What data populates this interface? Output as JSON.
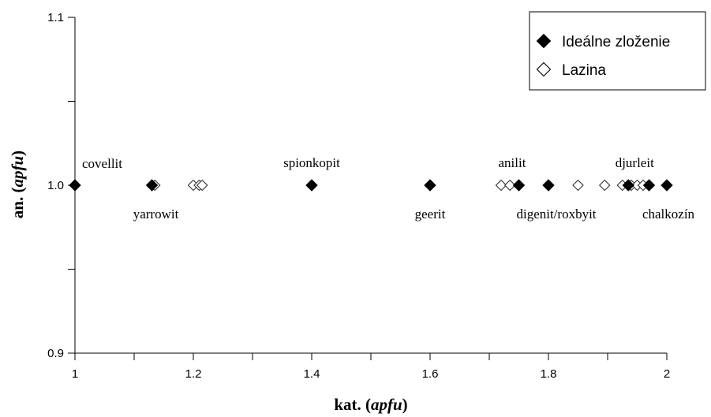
{
  "chart_data": {
    "type": "scatter",
    "xlabel": {
      "prefix": "kat. (",
      "unit": "apfu",
      "suffix": ")"
    },
    "ylabel": {
      "prefix": "an. (",
      "unit": "apfu",
      "suffix": ")"
    },
    "xlim": [
      1,
      2
    ],
    "ylim": [
      0.9,
      1.1
    ],
    "x_ticks": [
      {
        "value": 1,
        "label": "1"
      },
      {
        "value": 1.2,
        "label": "1.2"
      },
      {
        "value": 1.4,
        "label": "1.4"
      },
      {
        "value": 1.6,
        "label": "1.6"
      },
      {
        "value": 1.8,
        "label": "1.8"
      },
      {
        "value": 2,
        "label": "2"
      }
    ],
    "x_minor_step": 0.1,
    "y_ticks": [
      {
        "value": 0.9,
        "label": "0.9"
      },
      {
        "value": 1.0,
        "label": "1.0"
      },
      {
        "value": 1.1,
        "label": "1.1"
      }
    ],
    "y_minor_step": 0.05,
    "grid": false,
    "legend_position": "top-right",
    "series": [
      {
        "name": "Ideálne zloženie",
        "marker": "filled-diamond",
        "color": "#000000",
        "points": [
          {
            "x": 1.0,
            "y": 1.0
          },
          {
            "x": 1.13,
            "y": 1.0
          },
          {
            "x": 1.4,
            "y": 1.0
          },
          {
            "x": 1.6,
            "y": 1.0
          },
          {
            "x": 1.75,
            "y": 1.0
          },
          {
            "x": 1.8,
            "y": 1.0
          },
          {
            "x": 1.935,
            "y": 1.0
          },
          {
            "x": 1.97,
            "y": 1.0
          },
          {
            "x": 2.0,
            "y": 1.0
          }
        ]
      },
      {
        "name": "Lazina",
        "marker": "open-diamond",
        "color": "#000000",
        "points": [
          {
            "x": 1.135,
            "y": 1.0
          },
          {
            "x": 1.2,
            "y": 1.0
          },
          {
            "x": 1.21,
            "y": 1.0
          },
          {
            "x": 1.215,
            "y": 1.0
          },
          {
            "x": 1.72,
            "y": 1.0
          },
          {
            "x": 1.735,
            "y": 1.0
          },
          {
            "x": 1.85,
            "y": 1.0
          },
          {
            "x": 1.895,
            "y": 1.0
          },
          {
            "x": 1.925,
            "y": 1.0
          },
          {
            "x": 1.94,
            "y": 1.0
          },
          {
            "x": 1.95,
            "y": 1.0
          },
          {
            "x": 1.96,
            "y": 1.0
          }
        ]
      }
    ],
    "annotations": [
      {
        "text": "covellit",
        "x": 1.0,
        "y": 1.0,
        "position": "above-right"
      },
      {
        "text": "yarrowit",
        "x": 1.13,
        "y": 1.0,
        "position": "below"
      },
      {
        "text": "spionkopit",
        "x": 1.4,
        "y": 1.0,
        "position": "above"
      },
      {
        "text": "geerit",
        "x": 1.6,
        "y": 1.0,
        "position": "below"
      },
      {
        "text": "anilit",
        "x": 1.75,
        "y": 1.0,
        "position": "above"
      },
      {
        "text": "digenit/roxbyit",
        "x": 1.8,
        "y": 1.0,
        "position": "below"
      },
      {
        "text": "djurleit",
        "x": 1.935,
        "y": 1.0,
        "position": "above"
      },
      {
        "text": "chalkozín",
        "x": 2.0,
        "y": 1.0,
        "position": "below"
      }
    ]
  }
}
